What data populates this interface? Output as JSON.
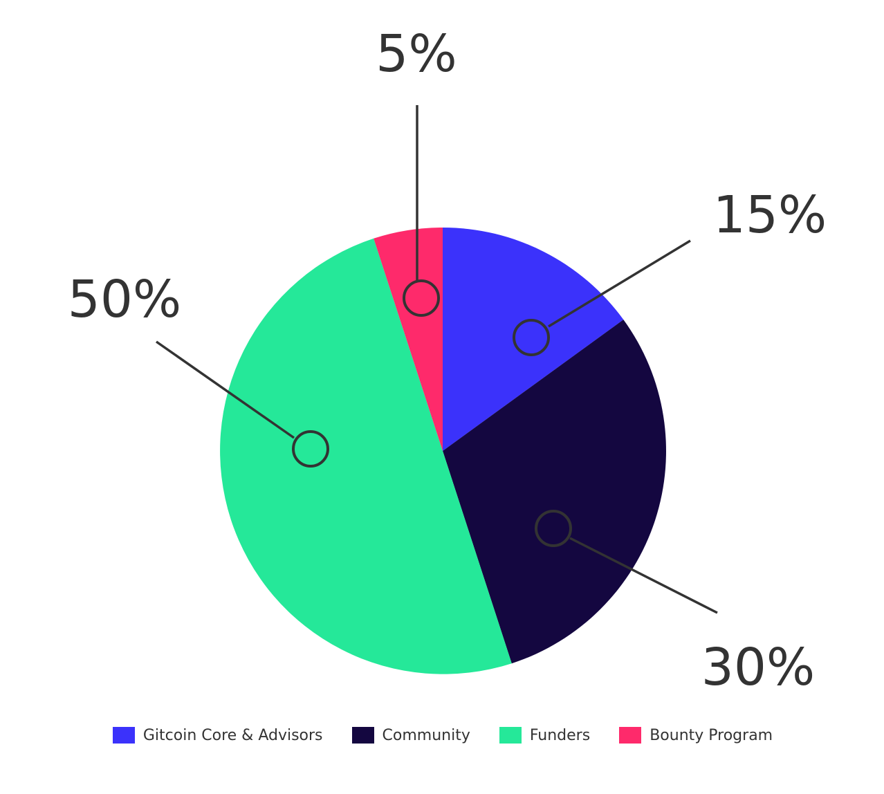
{
  "chart_data": {
    "type": "pie",
    "title": "",
    "slices": [
      {
        "name": "Gitcoin Core & Advisors",
        "value": 15,
        "label": "15%",
        "color": "#3b32fb"
      },
      {
        "name": "Community",
        "value": 30,
        "label": "30%",
        "color": "#140740"
      },
      {
        "name": "Funders",
        "value": 50,
        "label": "50%",
        "color": "#25e899"
      },
      {
        "name": "Bounty Program",
        "value": 5,
        "label": "5%",
        "color": "#fe2a6b"
      }
    ],
    "start_angle": "12 o'clock",
    "direction": "clockwise",
    "legend_position": "bottom"
  }
}
